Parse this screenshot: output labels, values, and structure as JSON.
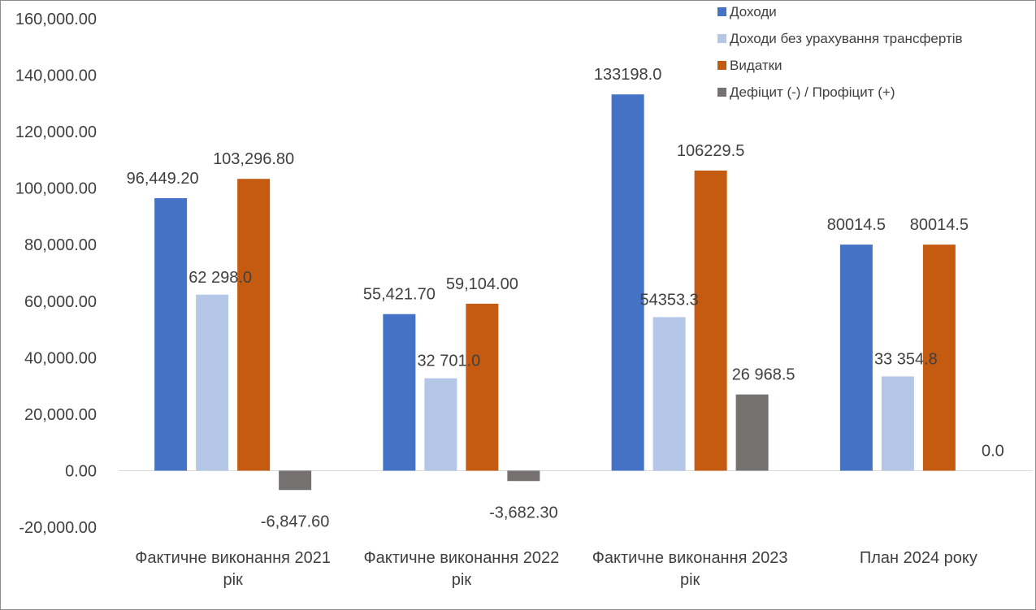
{
  "chart_data": {
    "type": "bar",
    "title": "",
    "xlabel": "",
    "ylabel": "",
    "ylim": [
      -20000,
      160000
    ],
    "y_ticks": [
      -20000,
      0,
      20000,
      40000,
      60000,
      80000,
      100000,
      120000,
      140000,
      160000
    ],
    "y_tick_labels": [
      "-20,000.00",
      "0.00",
      "20,000.00",
      "40,000.00",
      "60,000.00",
      "80,000.00",
      "100,000.00",
      "120,000.00",
      "140,000.00",
      "160,000.00"
    ],
    "grid": false,
    "legend_position": "top-right",
    "categories": [
      [
        "Фактичне виконання 2021",
        "рік"
      ],
      [
        "Фактичне виконання 2022",
        "рік"
      ],
      [
        "Фактичне виконання 2023",
        "рік"
      ],
      [
        "План 2024 року"
      ]
    ],
    "series": [
      {
        "name": "Доходи",
        "color": "#4472C4",
        "values": [
          96449.2,
          55421.7,
          133198.0,
          80014.5
        ],
        "labels": [
          "96,449.20",
          "55,421.70",
          "133198.0",
          "80014.5"
        ]
      },
      {
        "name": "Доходи без урахування трансфертів",
        "color": "#B4C7E7",
        "values": [
          62298.0,
          32701.0,
          54353.3,
          33354.8
        ],
        "labels": [
          "62 298.0",
          "32 701.0",
          "54353.3",
          "33 354.8"
        ]
      },
      {
        "name": "Видатки",
        "color": "#C55A11",
        "values": [
          103296.8,
          59104.0,
          106229.5,
          80014.5
        ],
        "labels": [
          "103,296.80",
          "59,104.00",
          "106229.5",
          "80014.5"
        ]
      },
      {
        "name": "Дефіцит (-) / Профіцит (+)",
        "color": "#767171",
        "values": [
          -6847.6,
          -3682.3,
          26968.5,
          0.0
        ],
        "labels": [
          "-6,847.60",
          "-3,682.30",
          "26 968.5",
          "0.0"
        ]
      }
    ]
  }
}
